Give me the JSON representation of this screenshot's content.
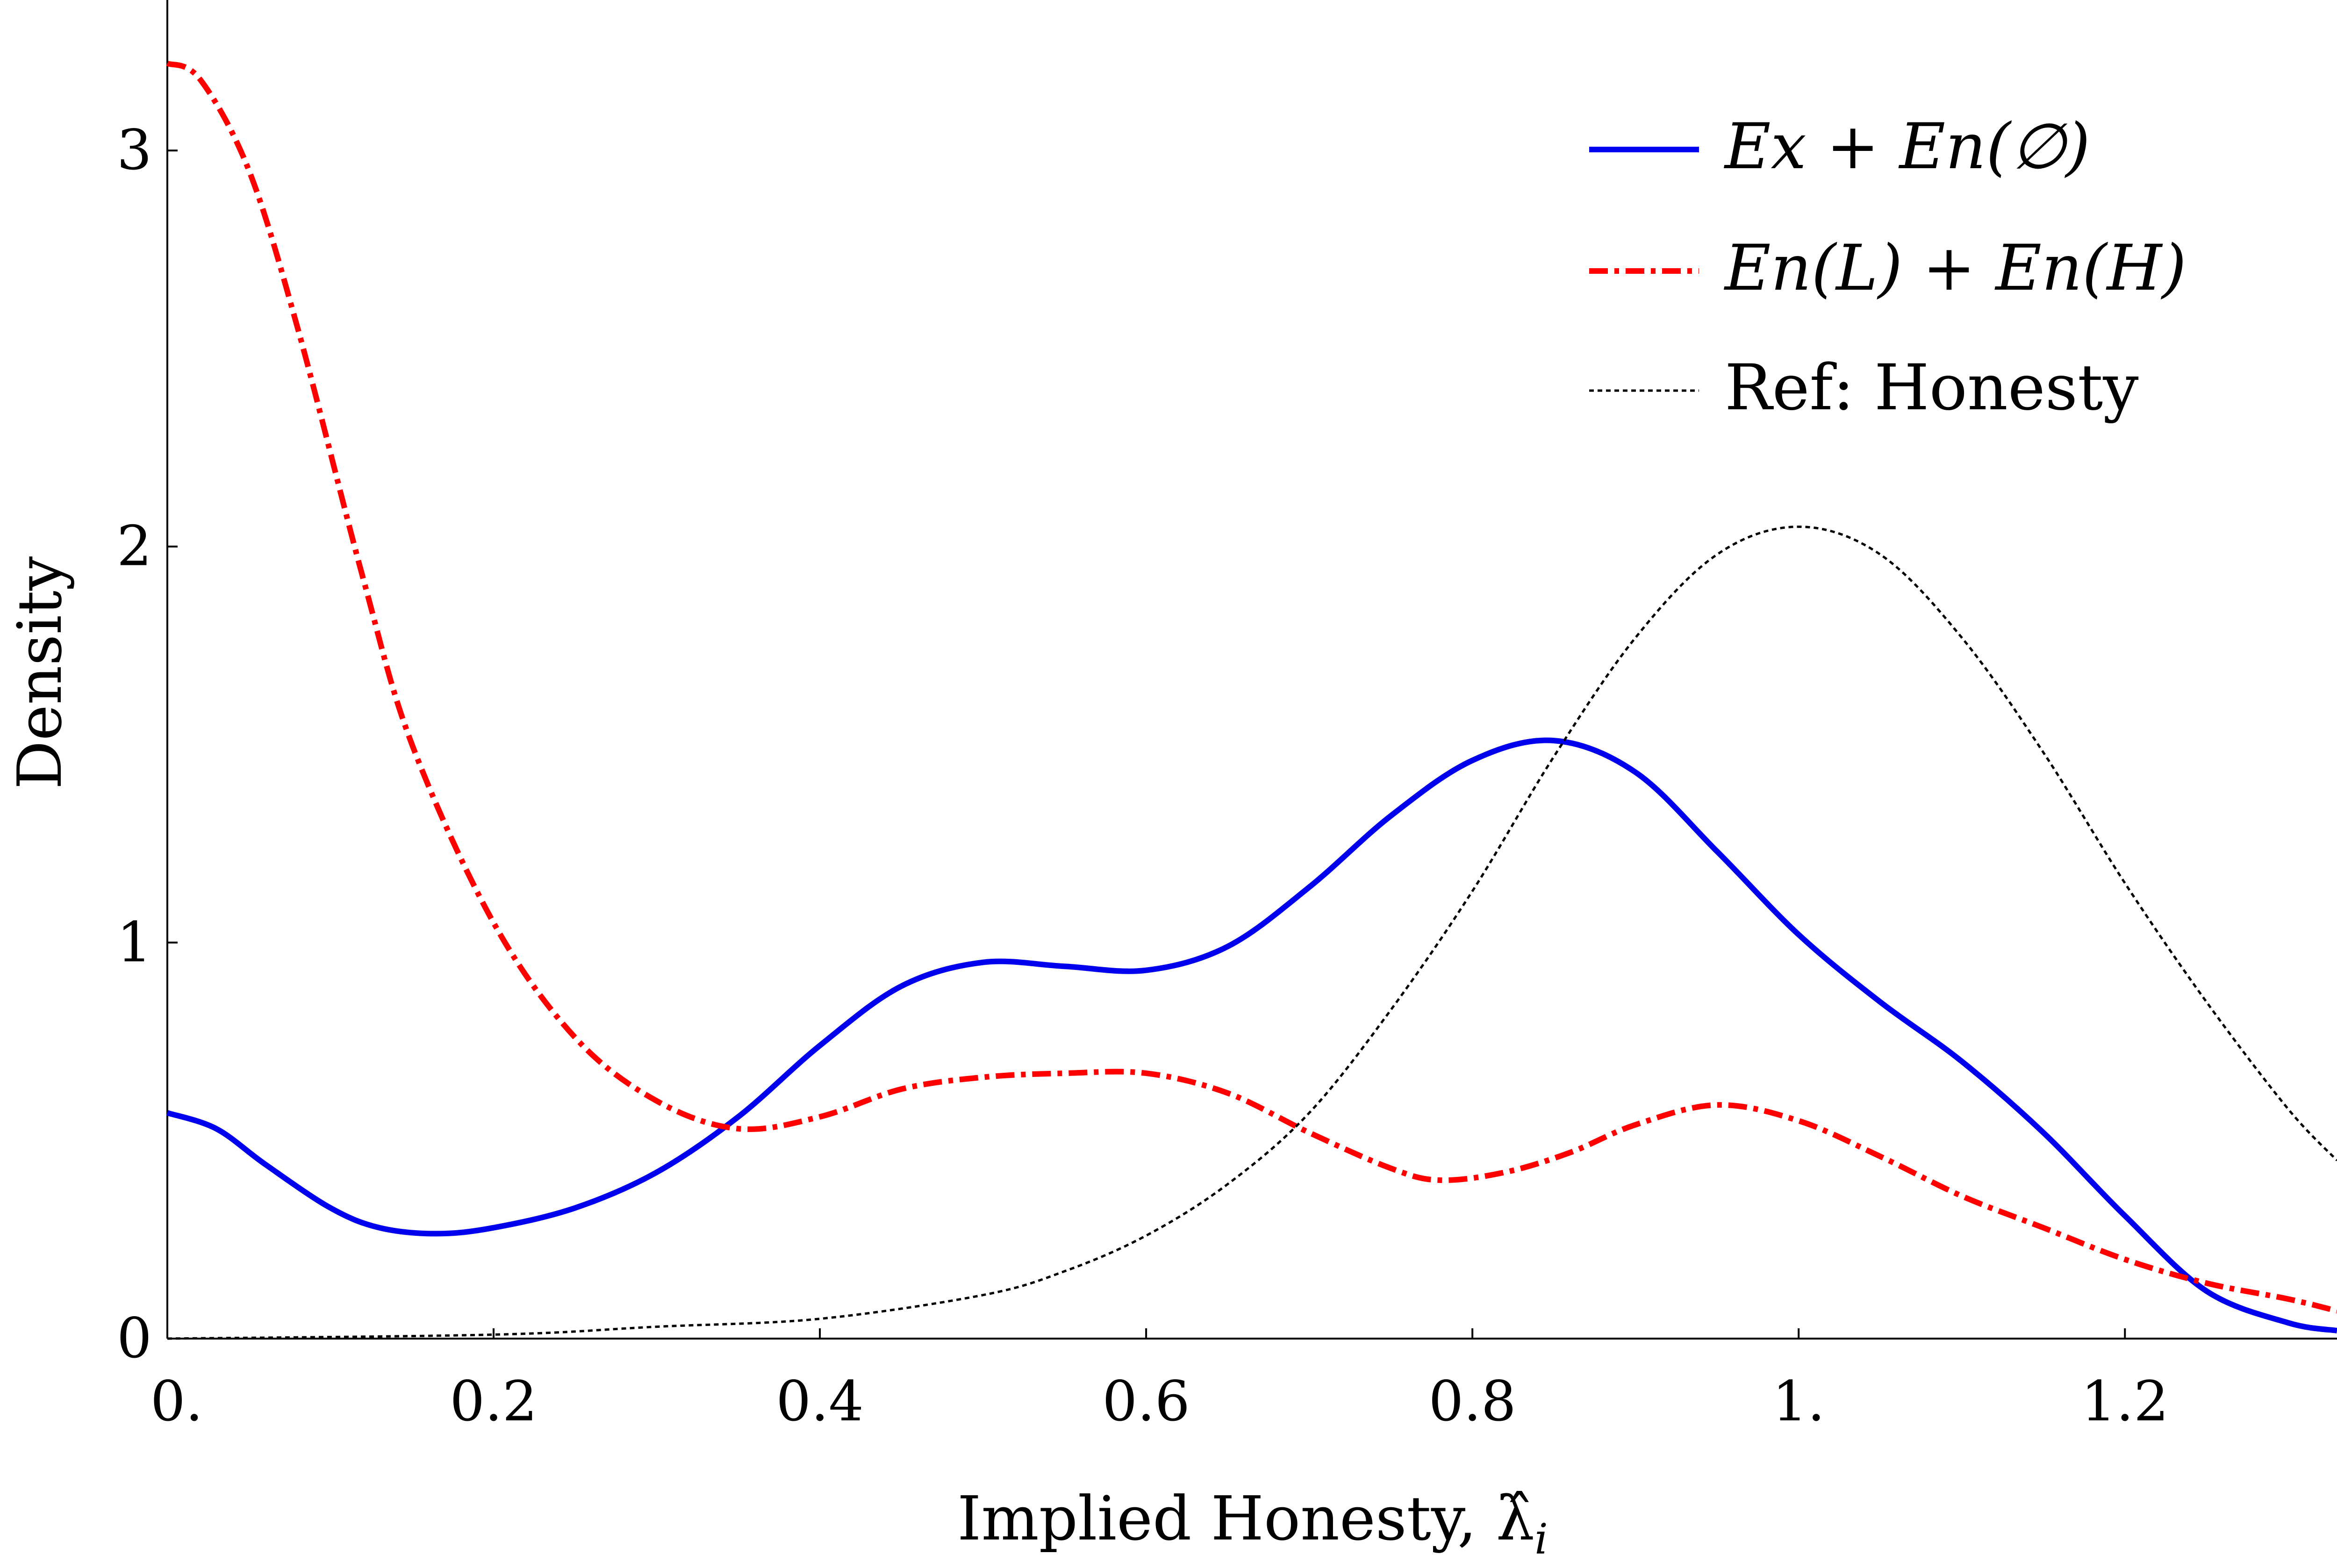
{
  "chart_data": {
    "type": "line",
    "title": "",
    "xlabel": "Implied Honesty, λ̂",
    "xlabel_subscript": "i",
    "ylabel": "Density",
    "xlim": [
      0,
      1.33
    ],
    "ylim": [
      0,
      3.38
    ],
    "x_ticks": [
      0,
      0.2,
      0.4,
      0.6,
      0.8,
      1.0,
      1.2
    ],
    "x_tick_labels": [
      "0.",
      "0.2",
      "0.4",
      "0.6",
      "0.8",
      "1.",
      "1.2"
    ],
    "y_ticks": [
      0,
      1,
      2,
      3
    ],
    "y_tick_labels": [
      "0",
      "1",
      "2",
      "3"
    ],
    "grid": false,
    "legend_position": "top-right",
    "series": [
      {
        "name": "Ex + En(∅)",
        "color": "#0000ee",
        "style": "solid",
        "x": [
          0,
          0.03,
          0.06,
          0.1,
          0.13,
          0.165,
          0.2,
          0.25,
          0.3,
          0.35,
          0.4,
          0.45,
          0.5,
          0.55,
          0.6,
          0.65,
          0.7,
          0.75,
          0.8,
          0.85,
          0.9,
          0.95,
          1.0,
          1.05,
          1.1,
          1.15,
          1.2,
          1.25,
          1.3,
          1.33
        ],
        "values": [
          0.57,
          0.53,
          0.44,
          0.33,
          0.28,
          0.265,
          0.28,
          0.33,
          0.42,
          0.56,
          0.74,
          0.89,
          0.95,
          0.94,
          0.93,
          0.99,
          1.14,
          1.32,
          1.46,
          1.51,
          1.43,
          1.23,
          1.02,
          0.85,
          0.7,
          0.52,
          0.31,
          0.12,
          0.04,
          0.02
        ]
      },
      {
        "name": "En(L) + En(H)",
        "color": "#ff0000",
        "style": "dash-dot",
        "x": [
          0,
          0.02,
          0.05,
          0.08,
          0.12,
          0.15,
          0.2,
          0.25,
          0.3,
          0.35,
          0.4,
          0.45,
          0.5,
          0.55,
          0.6,
          0.65,
          0.7,
          0.75,
          0.78,
          0.82,
          0.86,
          0.9,
          0.95,
          1.0,
          1.05,
          1.1,
          1.15,
          1.2,
          1.25,
          1.3,
          1.33
        ],
        "values": [
          3.22,
          3.18,
          2.95,
          2.55,
          1.92,
          1.5,
          1.05,
          0.76,
          0.6,
          0.53,
          0.56,
          0.63,
          0.66,
          0.67,
          0.67,
          0.62,
          0.52,
          0.43,
          0.4,
          0.42,
          0.47,
          0.54,
          0.59,
          0.55,
          0.46,
          0.36,
          0.28,
          0.2,
          0.14,
          0.1,
          0.07
        ]
      },
      {
        "name": "Ref: Honesty",
        "color": "#000000",
        "style": "dotted",
        "x": [
          0,
          0.2,
          0.3,
          0.4,
          0.5,
          0.55,
          0.6,
          0.65,
          0.7,
          0.75,
          0.8,
          0.85,
          0.9,
          0.95,
          1.0,
          1.05,
          1.1,
          1.15,
          1.2,
          1.25,
          1.3,
          1.33
        ],
        "values": [
          0.0,
          0.01,
          0.03,
          0.05,
          0.11,
          0.17,
          0.26,
          0.39,
          0.57,
          0.83,
          1.13,
          1.47,
          1.77,
          1.98,
          2.05,
          1.98,
          1.77,
          1.48,
          1.15,
          0.85,
          0.58,
          0.45
        ]
      }
    ]
  }
}
